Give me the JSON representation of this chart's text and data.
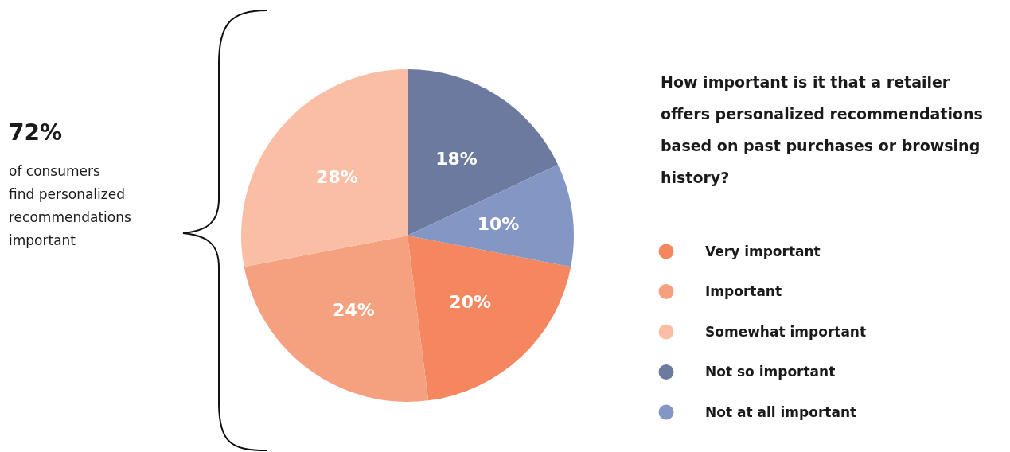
{
  "chart_data": {
    "type": "pie",
    "title": "How important is it that a retailer offers personalized recommendations based on past purchases or browsing history?",
    "categories": [
      "Very important",
      "Important",
      "Somewhat important",
      "Not so important",
      "Not at all important"
    ],
    "values": [
      20,
      24,
      28,
      18,
      10
    ],
    "colors": [
      "#f4875f",
      "#f5a17f",
      "#f9bea4",
      "#6b7a9e",
      "#8497c4"
    ],
    "value_labels": [
      "20%",
      "24%",
      "28%",
      "18%",
      "10%"
    ],
    "legend": "right",
    "annotations": [
      "72%",
      "of consumers\nfind personalized\nrecommendations\nimportant"
    ]
  }
}
